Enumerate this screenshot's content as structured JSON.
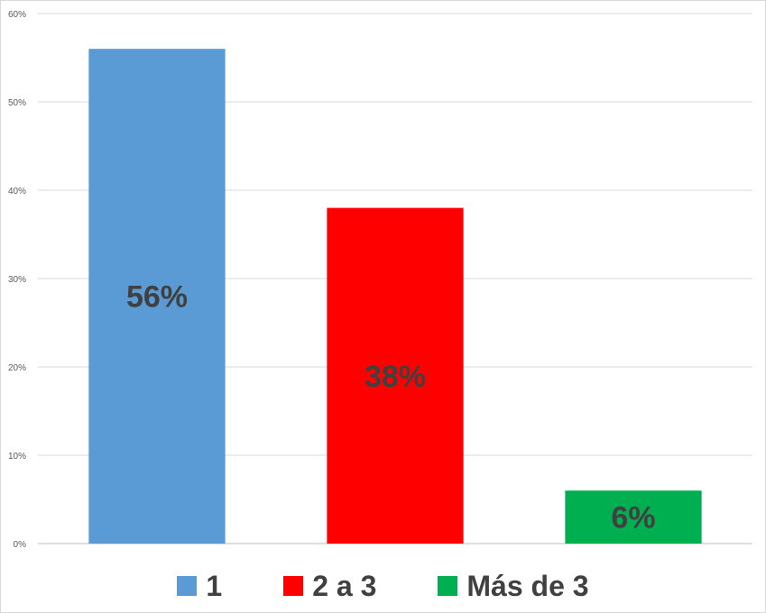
{
  "chart_data": {
    "type": "bar",
    "categories": [
      "1",
      "2 a 3",
      "Más de 3"
    ],
    "values": [
      56,
      38,
      6
    ],
    "data_labels": [
      "56%",
      "38%",
      "6%"
    ],
    "colors": [
      "#5b9bd5",
      "#ff0000",
      "#00b050"
    ],
    "ylim": [
      0,
      60
    ],
    "yticks": [
      "0%",
      "10%",
      "20%",
      "30%",
      "40%",
      "50%",
      "60%"
    ],
    "grid": true,
    "legend_position": "bottom",
    "title": "",
    "xlabel": "",
    "ylabel": ""
  },
  "legend": {
    "items": [
      {
        "label": "1",
        "color": "#5b9bd5"
      },
      {
        "label": "2 a 3",
        "color": "#ff0000"
      },
      {
        "label": "Más de 3",
        "color": "#00b050"
      }
    ]
  }
}
